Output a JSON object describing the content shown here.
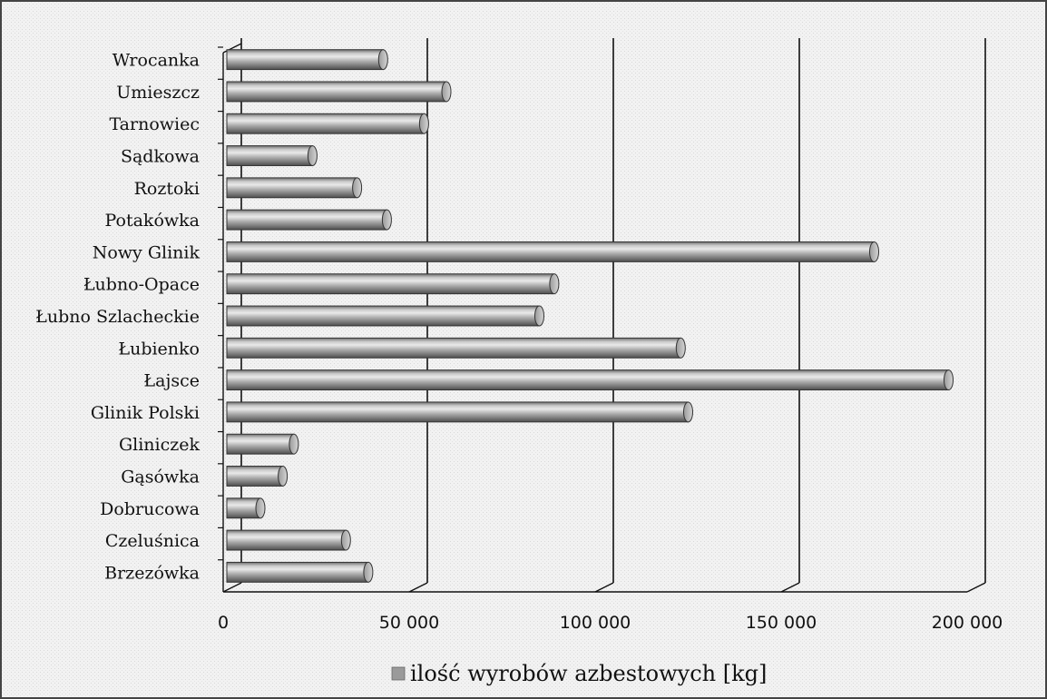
{
  "chart_data": {
    "type": "bar",
    "orientation": "horizontal",
    "categories": [
      "Brzezówka",
      "Czeluśnica",
      "Dobrucowa",
      "Gąsówka",
      "Gliniczek",
      "Glinik Polski",
      "Łajsce",
      "Łubienko",
      "Łubno Szlacheckie",
      "Łubno-Opace",
      "Nowy Glinik",
      "Potakówka",
      "Roztoki",
      "Sądkowa",
      "Tarnowiec",
      "Umieszcz",
      "Wrocanka"
    ],
    "series": [
      {
        "name": "ilość wyrobów azbestowych [kg]",
        "values": [
          39000,
          33000,
          10000,
          16000,
          19000,
          125000,
          195000,
          123000,
          85000,
          89000,
          175000,
          44000,
          36000,
          24000,
          54000,
          60000,
          43000
        ]
      }
    ],
    "xlim": [
      0,
      200000
    ],
    "x_ticks": [
      "0",
      "50 000",
      "100 000",
      "150 000",
      "200 000"
    ],
    "x_tick_values": [
      0,
      50000,
      100000,
      150000,
      200000
    ],
    "grid": true,
    "legend": "bottom",
    "bar_color": "#9a9a9a"
  }
}
